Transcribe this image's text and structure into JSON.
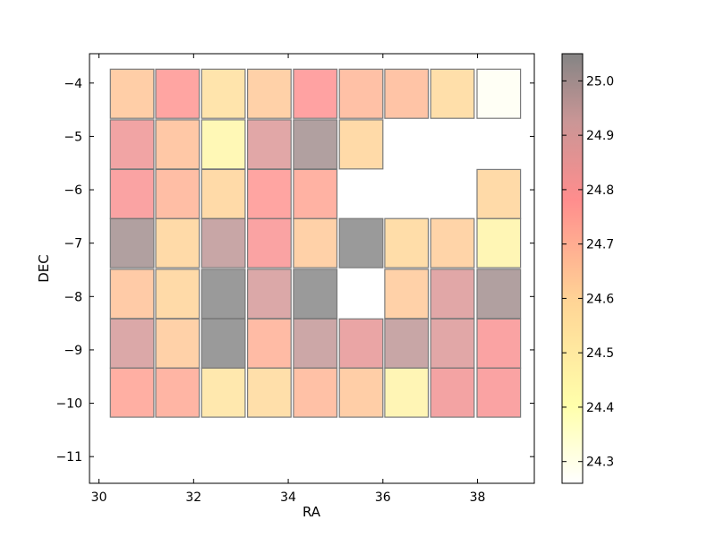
{
  "chart_data": {
    "type": "heatmap",
    "title": "",
    "xlabel": "RA",
    "ylabel": "DEC",
    "xlim": [
      29.8,
      39.2
    ],
    "ylim": [
      -11.5,
      -3.45
    ],
    "xticks": [
      30,
      32,
      34,
      36,
      38
    ],
    "xtick_labels": [
      "30",
      "32",
      "34",
      "36",
      "38"
    ],
    "yticks": [
      -4,
      -5,
      -6,
      -7,
      -8,
      -9,
      -10,
      -11
    ],
    "ytick_labels": [
      "−4",
      "−5",
      "−6",
      "−7",
      "−8",
      "−9",
      "−10",
      "−11"
    ],
    "grid": false,
    "colorbar": {
      "vmin": 24.26,
      "vmax": 25.05,
      "ticks": [
        24.3,
        24.4,
        24.5,
        24.6,
        24.7,
        24.8,
        24.9,
        25.0
      ],
      "tick_labels": [
        "24.3",
        "24.4",
        "24.5",
        "24.6",
        "24.7",
        "24.8",
        "24.9",
        "25.0"
      ]
    },
    "ra_centers": [
      30.7,
      31.66,
      32.63,
      33.6,
      34.57,
      35.54,
      36.5,
      37.47,
      38.45
    ],
    "dec_centers": [
      -4.2,
      -5.15,
      -6.08,
      -7.0,
      -7.95,
      -8.88,
      -9.8
    ],
    "values": [
      [
        24.64,
        24.77,
        24.55,
        24.63,
        24.78,
        24.68,
        24.67,
        24.58,
        24.28
      ],
      [
        24.83,
        24.66,
        24.44,
        24.88,
        25.0,
        24.6,
        null,
        null,
        null
      ],
      [
        24.8,
        24.69,
        24.6,
        24.77,
        24.73,
        null,
        null,
        null,
        24.6
      ],
      [
        25.0,
        24.6,
        24.95,
        24.8,
        24.63,
        25.05,
        24.59,
        24.62,
        24.45
      ],
      [
        24.65,
        24.6,
        25.05,
        24.9,
        25.05,
        null,
        24.63,
        24.88,
        25.0
      ],
      [
        24.9,
        24.63,
        25.05,
        24.7,
        24.94,
        24.85,
        24.95,
        24.88,
        24.8
      ],
      [
        24.74,
        24.72,
        24.53,
        24.58,
        24.68,
        24.64,
        24.46,
        24.82,
        24.8
      ]
    ]
  }
}
